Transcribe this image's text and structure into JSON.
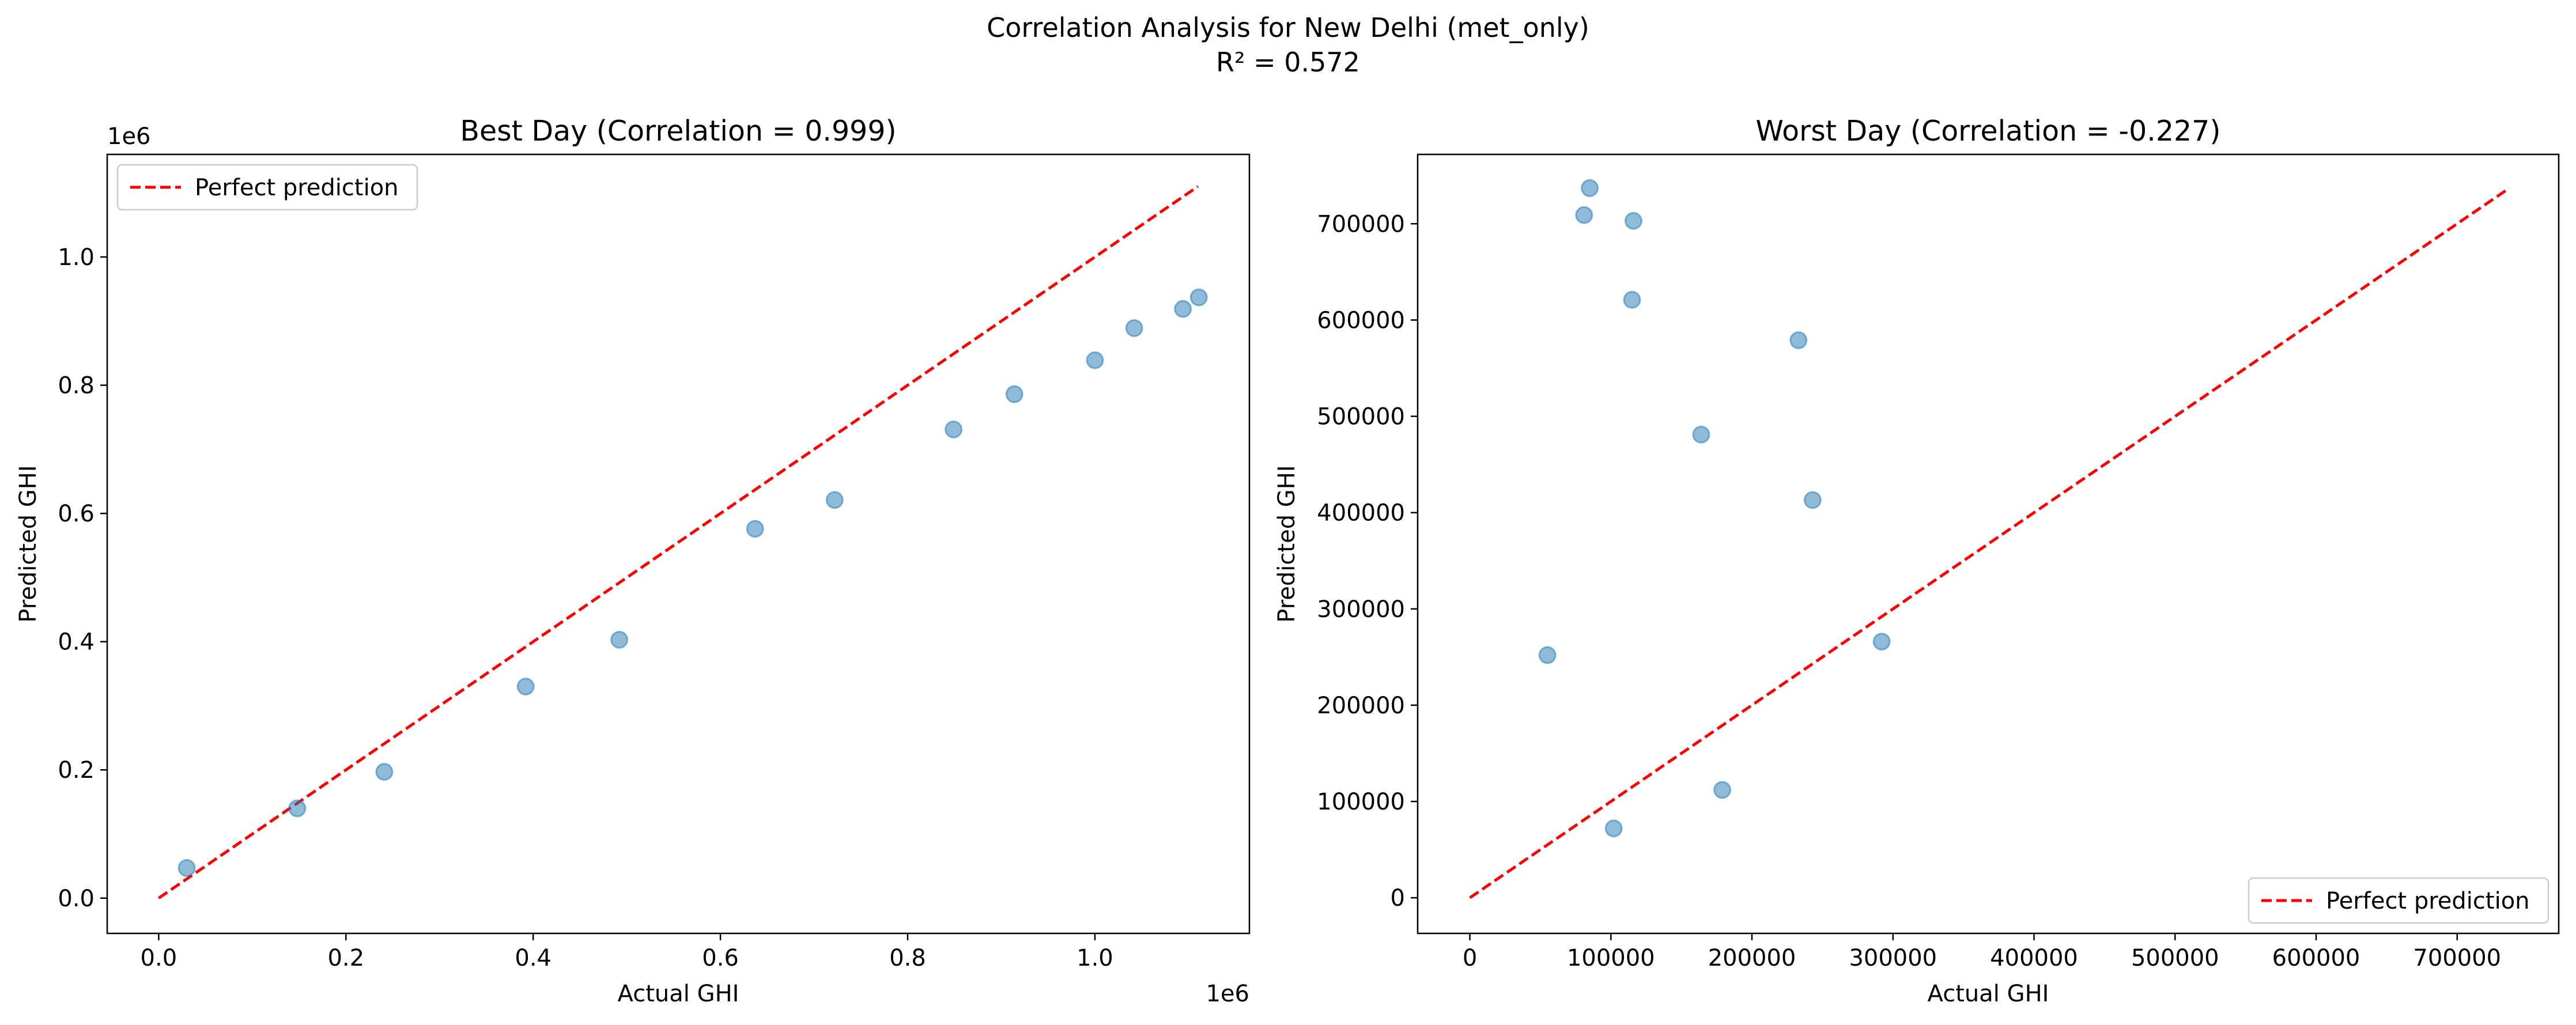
{
  "suptitle": {
    "line1": "Correlation Analysis for New Delhi (met_only)",
    "line2": "R² = 0.572"
  },
  "colors": {
    "points": "#1f77b4",
    "reference_line": "#ff0000",
    "axes": "#000000",
    "background": "#ffffff"
  },
  "chart_data": [
    {
      "type": "scatter",
      "title": "Best Day (Correlation = 0.999)",
      "xlabel": "Actual GHI",
      "ylabel": "Predicted GHI",
      "x_offset_label": "1e6",
      "y_offset_label": "1e6",
      "xlim": [
        -55000,
        1165000
      ],
      "ylim": [
        -55000,
        1160000
      ],
      "xticks": [
        0,
        200000,
        400000,
        600000,
        800000,
        1000000
      ],
      "xtick_labels": [
        "0.0",
        "0.2",
        "0.4",
        "0.6",
        "0.8",
        "1.0"
      ],
      "yticks": [
        0,
        200000,
        400000,
        600000,
        800000,
        1000000
      ],
      "ytick_labels": [
        "0.0",
        "0.2",
        "0.4",
        "0.6",
        "0.8",
        "1.0"
      ],
      "grid": false,
      "legend": {
        "position": "upper left",
        "label": "Perfect prediction"
      },
      "reference_line": {
        "label": "Perfect prediction",
        "from": [
          0,
          0
        ],
        "to": [
          1110000,
          1110000
        ],
        "style": "dashed"
      },
      "points": [
        {
          "x": 30000,
          "y": 47000
        },
        {
          "x": 148000,
          "y": 140000
        },
        {
          "x": 241000,
          "y": 197000
        },
        {
          "x": 392000,
          "y": 330000
        },
        {
          "x": 492000,
          "y": 403000
        },
        {
          "x": 637000,
          "y": 576000
        },
        {
          "x": 722000,
          "y": 621000
        },
        {
          "x": 849000,
          "y": 731000
        },
        {
          "x": 914000,
          "y": 786000
        },
        {
          "x": 1000000,
          "y": 839000
        },
        {
          "x": 1042000,
          "y": 889000
        },
        {
          "x": 1094000,
          "y": 919000
        },
        {
          "x": 1111000,
          "y": 937000
        }
      ]
    },
    {
      "type": "scatter",
      "title": "Worst Day (Correlation = -0.227)",
      "xlabel": "Actual GHI",
      "ylabel": "Predicted GHI",
      "xlim": [
        -37000,
        772000
      ],
      "ylim": [
        -37000,
        772000
      ],
      "xticks": [
        0,
        100000,
        200000,
        300000,
        400000,
        500000,
        600000,
        700000
      ],
      "xtick_labels": [
        "0",
        "100000",
        "200000",
        "300000",
        "400000",
        "500000",
        "600000",
        "700000"
      ],
      "yticks": [
        0,
        100000,
        200000,
        300000,
        400000,
        500000,
        600000,
        700000
      ],
      "ytick_labels": [
        "0",
        "100000",
        "200000",
        "300000",
        "400000",
        "500000",
        "600000",
        "700000"
      ],
      "grid": false,
      "legend": {
        "position": "lower right",
        "label": "Perfect prediction"
      },
      "reference_line": {
        "label": "Perfect prediction",
        "from": [
          0,
          0
        ],
        "to": [
          737000,
          737000
        ],
        "style": "dashed"
      },
      "points": [
        {
          "x": 85000,
          "y": 737000
        },
        {
          "x": 81000,
          "y": 709000
        },
        {
          "x": 116000,
          "y": 703000
        },
        {
          "x": 115000,
          "y": 621000
        },
        {
          "x": 233000,
          "y": 579000
        },
        {
          "x": 164000,
          "y": 481000
        },
        {
          "x": 243000,
          "y": 413000
        },
        {
          "x": 292000,
          "y": 266000
        },
        {
          "x": 55000,
          "y": 252000
        },
        {
          "x": 179000,
          "y": 112000
        },
        {
          "x": 102000,
          "y": 72000
        }
      ]
    }
  ]
}
